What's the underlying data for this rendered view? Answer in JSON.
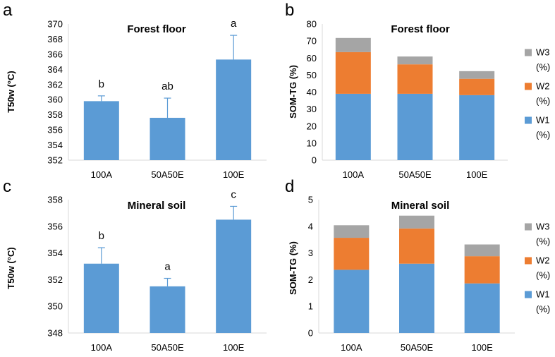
{
  "colors": {
    "w1": "#5b9bd5",
    "w2": "#ed7d31",
    "w3": "#a5a5a5",
    "axis": "#d9d9d9",
    "error": "#5b9bd5"
  },
  "chart_data": [
    {
      "panel": "a",
      "type": "bar",
      "title": "Forest floor",
      "xlabel": "",
      "ylabel": "T50w (°C)",
      "ylim": [
        352,
        370
      ],
      "yticks": [
        352,
        354,
        356,
        358,
        360,
        362,
        364,
        366,
        368,
        370
      ],
      "grid": false,
      "categories": [
        "100A",
        "50A50E",
        "100E"
      ],
      "values": [
        359.8,
        357.6,
        365.3
      ],
      "errors": [
        0.7,
        2.6,
        3.2
      ],
      "labels": [
        "b",
        "ab",
        "a"
      ]
    },
    {
      "panel": "b",
      "type": "bar",
      "stacked": true,
      "title": "Forest floor",
      "xlabel": "",
      "ylabel": "SOM-TG (%)",
      "ylim": [
        0,
        80
      ],
      "yticks": [
        0,
        10,
        20,
        30,
        40,
        50,
        60,
        70,
        80
      ],
      "grid": false,
      "legend_position": "right",
      "categories": [
        "100A",
        "50A50E",
        "100E"
      ],
      "series": [
        {
          "name": "W1 (%)",
          "legend": [
            "W1",
            "(%)"
          ],
          "color": "#5b9bd5",
          "values": [
            39.0,
            39.0,
            38.2
          ]
        },
        {
          "name": "W2 (%)",
          "legend": [
            "W2",
            "(%)"
          ],
          "color": "#ed7d31",
          "values": [
            24.5,
            17.3,
            9.6
          ]
        },
        {
          "name": "W3 (%)",
          "legend": [
            "W3",
            "(%)"
          ],
          "color": "#a5a5a5",
          "values": [
            8.3,
            4.6,
            4.5
          ]
        }
      ]
    },
    {
      "panel": "c",
      "type": "bar",
      "title": "Mineral soil",
      "xlabel": "",
      "ylabel": "T50w (°C)",
      "ylim": [
        348,
        358
      ],
      "yticks": [
        348,
        350,
        352,
        354,
        356,
        358
      ],
      "grid": false,
      "categories": [
        "100A",
        "50A50E",
        "100E"
      ],
      "values": [
        353.2,
        351.5,
        356.5
      ],
      "errors": [
        1.2,
        0.6,
        1.0
      ],
      "labels": [
        "b",
        "a",
        "c"
      ]
    },
    {
      "panel": "d",
      "type": "bar",
      "stacked": true,
      "title": "Mineral soil",
      "xlabel": "",
      "ylabel": "SOM-TG (%)",
      "ylim": [
        0,
        5
      ],
      "yticks": [
        0,
        1,
        2,
        3,
        4,
        5
      ],
      "grid": false,
      "legend_position": "right",
      "categories": [
        "100A",
        "50A50E",
        "100E"
      ],
      "series": [
        {
          "name": "W1 (%)",
          "legend": [
            "W1",
            "(%)"
          ],
          "color": "#5b9bd5",
          "values": [
            2.37,
            2.6,
            1.86
          ]
        },
        {
          "name": "W2 (%)",
          "legend": [
            "W2",
            "(%)"
          ],
          "color": "#ed7d31",
          "values": [
            1.2,
            1.32,
            1.02
          ]
        },
        {
          "name": "W3 (%)",
          "legend": [
            "W3",
            "(%)"
          ],
          "color": "#a5a5a5",
          "values": [
            0.47,
            0.48,
            0.44
          ]
        }
      ]
    }
  ]
}
